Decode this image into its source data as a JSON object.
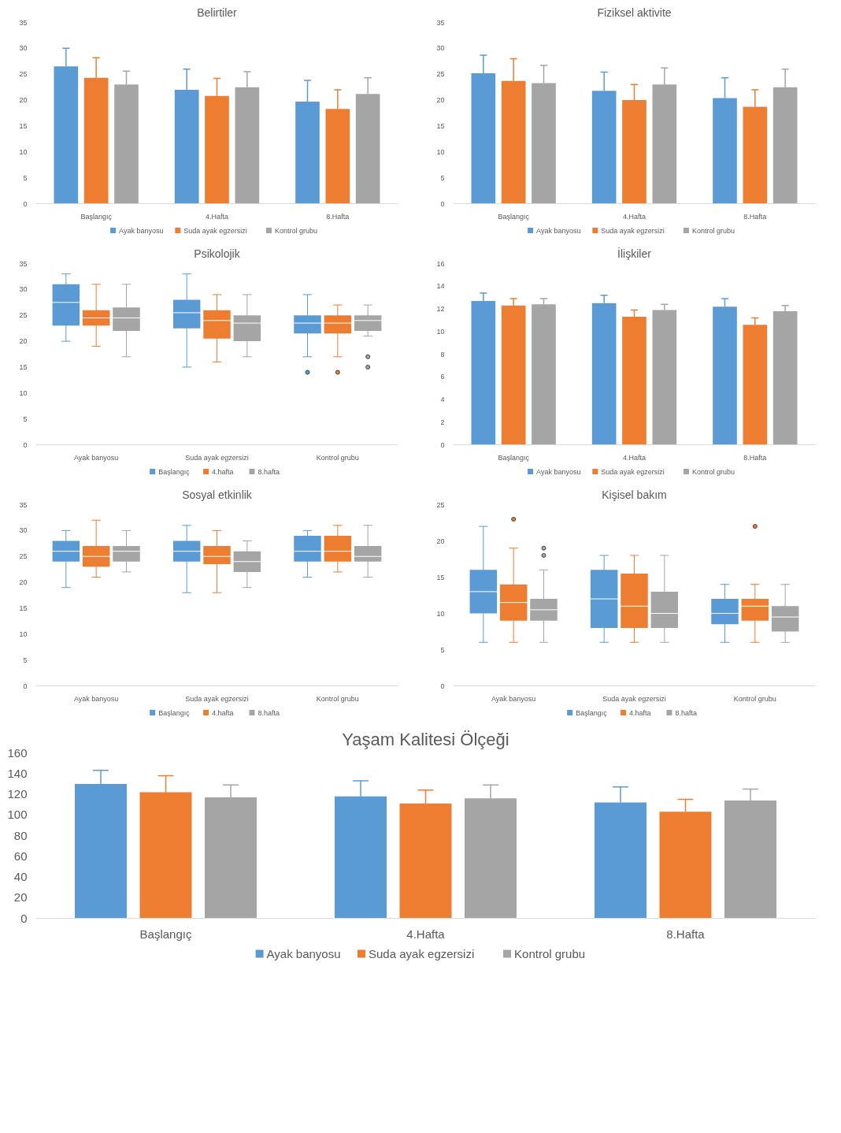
{
  "chart_data": [
    {
      "type": "bar",
      "title": "Belirtiler",
      "categories": [
        "Başlangıç",
        "4.Hafta",
        "8.Hafta"
      ],
      "ylim": [
        0,
        35
      ],
      "yticks": [
        0,
        5,
        10,
        15,
        20,
        25,
        30,
        35
      ],
      "legend": "bottom",
      "series": [
        {
          "name": "Ayak banyosu",
          "color": "#5b9bd5",
          "values": [
            26.5,
            22,
            19.7
          ],
          "errors": [
            [
              26.5,
              30
            ],
            [
              22,
              26
            ],
            [
              19.7,
              23.8
            ]
          ]
        },
        {
          "name": "Suda ayak egzersizi",
          "color": "#ed7d31",
          "values": [
            24.3,
            20.8,
            18.3
          ],
          "errors": [
            [
              24.3,
              28.2
            ],
            [
              20.8,
              24.2
            ],
            [
              18.3,
              22
            ]
          ]
        },
        {
          "name": "Kontrol grubu",
          "color": "#a5a5a5",
          "values": [
            23,
            22.5,
            21.2
          ],
          "errors": [
            [
              23,
              25.6
            ],
            [
              22.5,
              25.5
            ],
            [
              21.2,
              24.3
            ]
          ]
        }
      ]
    },
    {
      "type": "bar",
      "title": "Fiziksel aktivite",
      "categories": [
        "Başlangıç",
        "4.Hafta",
        "8.Hafta"
      ],
      "ylim": [
        0,
        35
      ],
      "yticks": [
        0,
        5,
        10,
        15,
        20,
        25,
        30,
        35
      ],
      "legend": "bottom",
      "series": [
        {
          "name": "Ayak banyosu",
          "color": "#5b9bd5",
          "values": [
            25.2,
            21.8,
            20.4
          ],
          "errors": [
            [
              25.2,
              28.7
            ],
            [
              21.8,
              25.4
            ],
            [
              20.4,
              24.3
            ]
          ]
        },
        {
          "name": "Suda ayak egzersizi",
          "color": "#ed7d31",
          "values": [
            23.7,
            20,
            18.7
          ],
          "errors": [
            [
              23.7,
              28
            ],
            [
              20,
              23
            ],
            [
              18.7,
              22
            ]
          ]
        },
        {
          "name": "Kontrol grubu",
          "color": "#a5a5a5",
          "values": [
            23.3,
            23,
            22.5
          ],
          "errors": [
            [
              23.3,
              26.7
            ],
            [
              23,
              26.2
            ],
            [
              22.5,
              26
            ]
          ]
        }
      ]
    },
    {
      "type": "box",
      "title": "Psikolojik",
      "categories": [
        "Ayak banyosu",
        "Suda ayak egzersizi",
        "Kontrol grubu"
      ],
      "ylim": [
        0,
        35
      ],
      "yticks": [
        0,
        5,
        10,
        15,
        20,
        25,
        30,
        35
      ],
      "legend": "bottom",
      "series": [
        {
          "name": "Başlangıç",
          "color": "#5b9bd5",
          "boxes": [
            {
              "low": 20,
              "q1": 23,
              "median": 27.5,
              "q3": 31,
              "high": 33
            },
            {
              "low": 15,
              "q1": 22.5,
              "median": 25.5,
              "q3": 28,
              "high": 33
            },
            {
              "low": 17,
              "q1": 21.5,
              "median": 23.5,
              "q3": 25,
              "high": 29,
              "outliers": [
                14
              ]
            }
          ]
        },
        {
          "name": "4.hafta",
          "color": "#ed7d31",
          "boxes": [
            {
              "low": 19,
              "q1": 23,
              "median": 24.5,
              "q3": 26,
              "high": 31
            },
            {
              "low": 16,
              "q1": 20.5,
              "median": 24,
              "q3": 26,
              "high": 29
            },
            {
              "low": 17,
              "q1": 21.5,
              "median": 23.5,
              "q3": 25,
              "high": 27,
              "outliers": [
                14
              ]
            }
          ]
        },
        {
          "name": "8.hafta",
          "color": "#a5a5a5",
          "boxes": [
            {
              "low": 17,
              "q1": 22,
              "median": 24.5,
              "q3": 26.5,
              "high": 31
            },
            {
              "low": 17,
              "q1": 20,
              "median": 23.5,
              "q3": 25,
              "high": 29
            },
            {
              "low": 21,
              "q1": 22,
              "median": 24,
              "q3": 25,
              "high": 27,
              "outliers": [
                17,
                15
              ]
            }
          ]
        }
      ]
    },
    {
      "type": "bar",
      "title": "İlişkiler",
      "categories": [
        "Başlangıç",
        "4.Hafta",
        "8.Hafta"
      ],
      "ylim": [
        0,
        16
      ],
      "yticks": [
        0,
        2,
        4,
        6,
        8,
        10,
        12,
        14,
        16
      ],
      "legend": "bottom",
      "series": [
        {
          "name": "Ayak banyosu",
          "color": "#5b9bd5",
          "values": [
            12.7,
            12.5,
            12.2
          ],
          "errors": [
            [
              12.7,
              13.4
            ],
            [
              12.5,
              13.2
            ],
            [
              12.2,
              12.9
            ]
          ]
        },
        {
          "name": "Suda ayak egzersizi",
          "color": "#ed7d31",
          "values": [
            12.3,
            11.3,
            10.6
          ],
          "errors": [
            [
              12.3,
              12.9
            ],
            [
              11.3,
              11.9
            ],
            [
              10.6,
              11.2
            ]
          ]
        },
        {
          "name": "Kontrol grubu",
          "color": "#a5a5a5",
          "values": [
            12.4,
            11.9,
            11.8
          ],
          "errors": [
            [
              12.4,
              12.9
            ],
            [
              11.9,
              12.4
            ],
            [
              11.8,
              12.3
            ]
          ]
        }
      ]
    },
    {
      "type": "box",
      "title": "Sosyal etkinlik",
      "categories": [
        "Ayak banyosu",
        "Suda ayak egzersizi",
        "Kontrol grubu"
      ],
      "ylim": [
        0,
        35
      ],
      "yticks": [
        0,
        5,
        10,
        15,
        20,
        25,
        30,
        35
      ],
      "legend": "bottom",
      "series": [
        {
          "name": "Başlangıç",
          "color": "#5b9bd5",
          "boxes": [
            {
              "low": 19,
              "q1": 24,
              "median": 26,
              "q3": 28,
              "high": 30
            },
            {
              "low": 18,
              "q1": 24,
              "median": 26,
              "q3": 28,
              "high": 31
            },
            {
              "low": 21,
              "q1": 24,
              "median": 26,
              "q3": 29,
              "high": 30
            }
          ]
        },
        {
          "name": "4.hafta",
          "color": "#ed7d31",
          "boxes": [
            {
              "low": 21,
              "q1": 23,
              "median": 25,
              "q3": 27,
              "high": 32
            },
            {
              "low": 18,
              "q1": 23.5,
              "median": 25,
              "q3": 27,
              "high": 30
            },
            {
              "low": 22,
              "q1": 24,
              "median": 26,
              "q3": 29,
              "high": 31
            }
          ]
        },
        {
          "name": "8.hafta",
          "color": "#a5a5a5",
          "boxes": [
            {
              "low": 22,
              "q1": 24,
              "median": 26,
              "q3": 27,
              "high": 30
            },
            {
              "low": 19,
              "q1": 22,
              "median": 24,
              "q3": 26,
              "high": 28
            },
            {
              "low": 21,
              "q1": 24,
              "median": 25,
              "q3": 27,
              "high": 31
            }
          ]
        }
      ]
    },
    {
      "type": "box",
      "title": "Kişisel bakım",
      "categories": [
        "Ayak banyosu",
        "Suda ayak egzersizi",
        "Kontrol grubu"
      ],
      "ylim": [
        0,
        25
      ],
      "yticks": [
        0,
        5,
        10,
        15,
        20,
        25
      ],
      "legend": "bottom",
      "series": [
        {
          "name": "Başlangıç",
          "color": "#5b9bd5",
          "boxes": [
            {
              "low": 6,
              "q1": 10,
              "median": 13,
              "q3": 16,
              "high": 22
            },
            {
              "low": 6,
              "q1": 8,
              "median": 12,
              "q3": 16,
              "high": 18
            },
            {
              "low": 6,
              "q1": 8.5,
              "median": 10,
              "q3": 12,
              "high": 14
            }
          ]
        },
        {
          "name": "4.hafta",
          "color": "#ed7d31",
          "boxes": [
            {
              "low": 6,
              "q1": 9,
              "median": 11.5,
              "q3": 14,
              "high": 19,
              "outliers": [
                23
              ]
            },
            {
              "low": 6,
              "q1": 8,
              "median": 11,
              "q3": 15.5,
              "high": 18
            },
            {
              "low": 6,
              "q1": 9,
              "median": 11,
              "q3": 12,
              "high": 14,
              "outliers": [
                22
              ]
            }
          ]
        },
        {
          "name": "8.hafta",
          "color": "#a5a5a5",
          "boxes": [
            {
              "low": 6,
              "q1": 9,
              "median": 10.5,
              "q3": 12,
              "high": 16,
              "outliers": [
                19,
                18
              ]
            },
            {
              "low": 6,
              "q1": 8,
              "median": 10,
              "q3": 13,
              "high": 18
            },
            {
              "low": 6,
              "q1": 7.5,
              "median": 9.5,
              "q3": 11,
              "high": 14
            }
          ]
        }
      ]
    },
    {
      "type": "bar",
      "title": "Yaşam Kalitesi Ölçeği",
      "categories": [
        "Başlangıç",
        "4.Hafta",
        "8.Hafta"
      ],
      "ylim": [
        0,
        160
      ],
      "yticks": [
        0,
        20,
        40,
        60,
        80,
        100,
        120,
        140,
        160
      ],
      "legend": "bottom",
      "series": [
        {
          "name": "Ayak banyosu",
          "color": "#5b9bd5",
          "values": [
            130,
            118,
            112
          ],
          "errors": [
            [
              130,
              143
            ],
            [
              118,
              133
            ],
            [
              112,
              127
            ]
          ]
        },
        {
          "name": "Suda ayak egzersizi",
          "color": "#ed7d31",
          "values": [
            122,
            111,
            103
          ],
          "errors": [
            [
              122,
              138
            ],
            [
              111,
              124
            ],
            [
              103,
              115
            ]
          ]
        },
        {
          "name": "Kontrol grubu",
          "color": "#a5a5a5",
          "values": [
            117,
            116,
            114
          ],
          "errors": [
            [
              117,
              129
            ],
            [
              116,
              129
            ],
            [
              114,
              125
            ]
          ]
        }
      ]
    }
  ]
}
